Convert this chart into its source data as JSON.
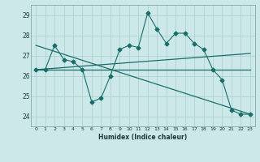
{
  "xlabel": "Humidex (Indice chaleur)",
  "background_color": "#cce8e8",
  "grid_color": "#aacece",
  "line_color": "#1a6e6a",
  "xlim": [
    -0.5,
    23.5
  ],
  "ylim": [
    23.5,
    29.5
  ],
  "yticks": [
    24,
    25,
    26,
    27,
    28,
    29
  ],
  "xticks": [
    0,
    1,
    2,
    3,
    4,
    5,
    6,
    7,
    8,
    9,
    10,
    11,
    12,
    13,
    14,
    15,
    16,
    17,
    18,
    19,
    20,
    21,
    22,
    23
  ],
  "series1_x": [
    0,
    1,
    2,
    3,
    4,
    5,
    6,
    7,
    8,
    9,
    10,
    11,
    12,
    13,
    14,
    15,
    16,
    17,
    18,
    19,
    20,
    21,
    22,
    23
  ],
  "series1_y": [
    26.3,
    26.3,
    27.5,
    26.8,
    26.7,
    26.3,
    24.7,
    24.9,
    26.0,
    27.3,
    27.5,
    27.4,
    29.1,
    28.3,
    27.6,
    28.1,
    28.1,
    27.6,
    27.3,
    26.3,
    25.8,
    24.3,
    24.1,
    24.1
  ],
  "line1_x": [
    0,
    23
  ],
  "line1_y": [
    26.3,
    26.3
  ],
  "line2_x": [
    0,
    23
  ],
  "line2_y": [
    27.5,
    24.1
  ],
  "line3_x": [
    0,
    23
  ],
  "line3_y": [
    26.3,
    27.1
  ]
}
